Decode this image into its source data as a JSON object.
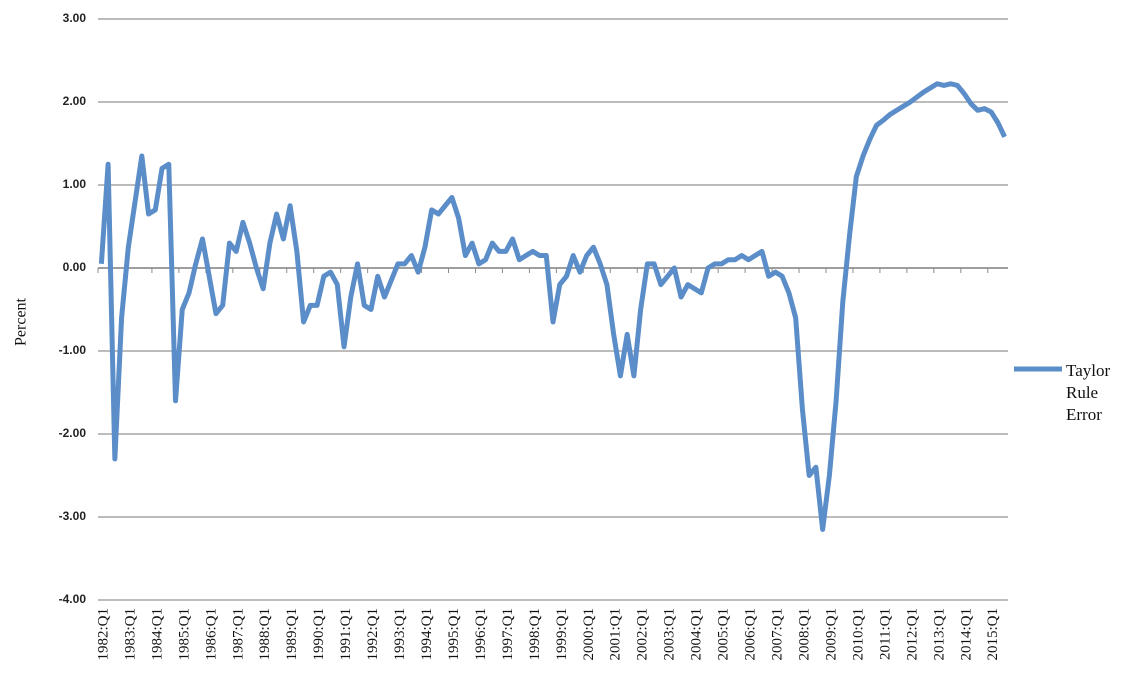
{
  "chart_data": {
    "type": "line",
    "y_label": "Percent",
    "categories": [
      "1982:Q1",
      null,
      null,
      null,
      "1983:Q1",
      null,
      null,
      null,
      "1984:Q1",
      null,
      null,
      null,
      "1985:Q1",
      null,
      null,
      null,
      "1986:Q1",
      null,
      null,
      null,
      "1987:Q1",
      null,
      null,
      null,
      "1988:Q1",
      null,
      null,
      null,
      "1989:Q1",
      null,
      null,
      null,
      "1990:Q1",
      null,
      null,
      null,
      "1991:Q1",
      null,
      null,
      null,
      "1992:Q1",
      null,
      null,
      null,
      "1993:Q1",
      null,
      null,
      null,
      "1994:Q1",
      null,
      null,
      null,
      "1995:Q1",
      null,
      null,
      null,
      "1996:Q1",
      null,
      null,
      null,
      "1997:Q1",
      null,
      null,
      null,
      "1998:Q1",
      null,
      null,
      null,
      "1999:Q1",
      null,
      null,
      null,
      "2000:Q1",
      null,
      null,
      null,
      "2001:Q1",
      null,
      null,
      null,
      "2002:Q1",
      null,
      null,
      null,
      "2003:Q1",
      null,
      null,
      null,
      "2004:Q1",
      null,
      null,
      null,
      "2005:Q1",
      null,
      null,
      null,
      "2006:Q1",
      null,
      null,
      null,
      "2007:Q1",
      null,
      null,
      null,
      "2008:Q1",
      null,
      null,
      null,
      "2009:Q1",
      null,
      null,
      null,
      "2010:Q1",
      null,
      null,
      null,
      "2011:Q1",
      null,
      null,
      null,
      "2012:Q1",
      null,
      null,
      null,
      "2013:Q1",
      null,
      null,
      null,
      "2014:Q1",
      null,
      null,
      null,
      "2015:Q1",
      null,
      null
    ],
    "series": [
      {
        "name": "Taylor Rule Error",
        "color": "#5b8dc9",
        "values": [
          0.05,
          1.25,
          -2.3,
          -0.6,
          0.25,
          0.8,
          1.35,
          0.65,
          0.7,
          1.2,
          1.25,
          -1.6,
          -0.5,
          -0.3,
          0.05,
          0.35,
          -0.1,
          -0.55,
          -0.45,
          0.3,
          0.2,
          0.55,
          0.3,
          0.0,
          -0.25,
          0.3,
          0.65,
          0.35,
          0.75,
          0.2,
          -0.65,
          -0.45,
          -0.45,
          -0.1,
          -0.05,
          -0.2,
          -0.95,
          -0.35,
          0.05,
          -0.45,
          -0.5,
          -0.1,
          -0.35,
          -0.15,
          0.05,
          0.05,
          0.15,
          -0.05,
          0.25,
          0.7,
          0.65,
          0.75,
          0.85,
          0.6,
          0.15,
          0.3,
          0.05,
          0.1,
          0.3,
          0.2,
          0.2,
          0.35,
          0.1,
          0.15,
          0.2,
          0.15,
          0.15,
          -0.65,
          -0.2,
          -0.1,
          0.15,
          -0.05,
          0.15,
          0.25,
          0.05,
          -0.2,
          -0.8,
          -1.3,
          -0.8,
          -1.3,
          -0.5,
          0.05,
          0.05,
          -0.2,
          -0.1,
          0.0,
          -0.35,
          -0.2,
          -0.25,
          -0.3,
          0.0,
          0.05,
          0.05,
          0.1,
          0.1,
          0.15,
          0.1,
          0.15,
          0.2,
          -0.1,
          -0.05,
          -0.1,
          -0.3,
          -0.6,
          -1.7,
          -2.5,
          -2.4,
          -3.15,
          -2.5,
          -1.6,
          -0.4,
          0.4,
          1.1,
          1.35,
          1.55,
          1.72,
          1.78,
          1.85,
          1.9,
          1.95,
          2.0,
          2.06,
          2.12,
          2.17,
          2.22,
          2.2,
          2.22,
          2.2,
          2.1,
          1.98,
          1.9,
          1.92,
          1.88,
          1.75,
          1.58
        ]
      }
    ],
    "ylim": [
      -4,
      3
    ],
    "yticks": [
      {
        "value": -4,
        "label": "-4.00"
      },
      {
        "value": -3,
        "label": "-3.00"
      },
      {
        "value": -2,
        "label": "-2.00"
      },
      {
        "value": -1,
        "label": "-1.00"
      },
      {
        "value": 0,
        "label": "0.00"
      },
      {
        "value": 1,
        "label": "1.00"
      },
      {
        "value": 2,
        "label": "2.00"
      },
      {
        "value": 3,
        "label": "3.00"
      }
    ],
    "grid": true,
    "legend": "right"
  }
}
